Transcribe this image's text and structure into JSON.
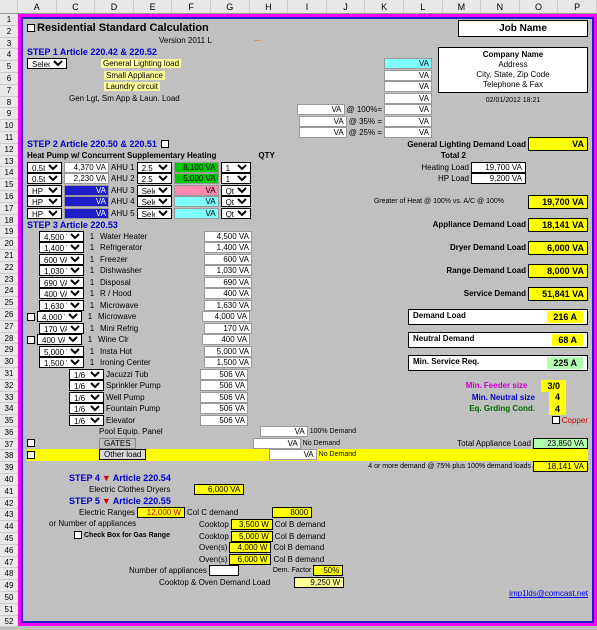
{
  "title": "Residential Standard Calculation",
  "version": "Version 2011 L",
  "jobname": "Job Name",
  "company": {
    "name": "Company Name",
    "addr": "Address",
    "csz": "City, State, Zip Code",
    "tel": "Telephone & Fax"
  },
  "timestamp": "02/01/2012 18:21",
  "step1": {
    "label": "STEP 1",
    "art": "Article 220.42 & 220.52"
  },
  "step1items": [
    "General Lighting load",
    "Small Appliance",
    "Laundry circuit",
    "Gen Lgt, Sm App & Laun. Load"
  ],
  "pcts": [
    "@ 100%=",
    "@ 35% =",
    "@ 25% ="
  ],
  "step2": {
    "label": "STEP 2",
    "art": "Article 220.50 & 220.51",
    "note": "Heat Pump w/ Concurrent Supplementary Heating"
  },
  "qtyh": "QTY",
  "ahuRows": [
    {
      "sel1": "0.5ton",
      "val": "4,370 VA",
      "ahu": "AHU 1",
      "kw": "2.5 kW",
      "green": true,
      "vva": "8,100 VA",
      "qty": "1"
    },
    {
      "sel1": "0.5ton",
      "val": "2,230 VA",
      "ahu": "AHU 2",
      "kw": "2.5 kW",
      "green": true,
      "vva": "5,000 VA",
      "qty": "1"
    },
    {
      "sel1": "HP kW",
      "val": "VA",
      "ahu": "AHU 3",
      "kw": "Select",
      "pink": true,
      "vva": "VA",
      "qty": "Qty",
      "bg": "navy"
    },
    {
      "sel1": "HP kW",
      "val": "VA",
      "ahu": "AHU 4",
      "kw": "Select",
      "cyan": true,
      "vva": "VA",
      "qty": "Qty",
      "bg": "navy"
    },
    {
      "sel1": "HP kW",
      "val": "VA",
      "ahu": "AHU 5",
      "kw": "Select",
      "cyan": true,
      "vva": "VA",
      "qty": "Qty",
      "bg": "navy"
    }
  ],
  "gldl": "General Lighting Demand Load",
  "total": "Total      2",
  "heatload": {
    "lbl": "Heating Load",
    "val": "19,700 VA"
  },
  "hpload": {
    "lbl": "HP Load",
    "val": "9,200 VA"
  },
  "greater": "Greater of Heat @ 100% vs. A/C @ 100%",
  "greaterVal": "19,700 VA",
  "step3": {
    "label": "STEP 3",
    "art": "Article 220.53"
  },
  "appliances": [
    {
      "sel": "4,500 VA",
      "q": "1",
      "name": "Water Heater",
      "va": "4,500 VA"
    },
    {
      "sel": "1,400 VA",
      "q": "1",
      "name": "Refrigerator",
      "va": "1,400 VA"
    },
    {
      "sel": "600 VA",
      "q": "1",
      "name": "Freezer",
      "va": "600 VA"
    },
    {
      "sel": "1,030 VA",
      "q": "1",
      "name": "Dishwasher",
      "va": "1,030 VA"
    },
    {
      "sel": "690 VA",
      "q": "1",
      "name": "Disposal",
      "va": "690 VA"
    },
    {
      "sel": "400 VA",
      "q": "1",
      "name": "R / Hood",
      "va": "400 VA"
    },
    {
      "sel": "1,630 VA",
      "q": "1",
      "name": "Microwave",
      "va": "1,630 VA"
    },
    {
      "sel": "4,000 VA",
      "q": "1",
      "name": "Microwave",
      "va": "4,000 VA"
    },
    {
      "sel": "170 VA",
      "q": "1",
      "name": "Mini Refrig",
      "va": "170 VA"
    },
    {
      "sel": "400 VA",
      "q": "1",
      "name": "Wine Clr",
      "va": "400 VA"
    },
    {
      "sel": "5,000 VA",
      "q": "1",
      "name": "Insta Hot",
      "va": "5,000 VA"
    },
    {
      "sel": "1,500 VA",
      "q": "1",
      "name": "Ironing Center",
      "va": "1,500 VA"
    }
  ],
  "hpItems": [
    {
      "sel": "1/6 hp",
      "name": "Jacuzzi Tub",
      "va": "506 VA"
    },
    {
      "sel": "1/6",
      "name": "Sprinkler Pump",
      "va": "506 VA"
    },
    {
      "sel": "1/6 hp",
      "name": "Well Pump",
      "va": "506 VA"
    },
    {
      "sel": "1/6",
      "name": "Fountain Pump",
      "va": "506 VA"
    },
    {
      "sel": "1/6 hp",
      "name": "Elevator",
      "va": "506 VA"
    }
  ],
  "pool": {
    "name": "Pool Equip. Panel",
    "va": "VA",
    "note": "100% Demand"
  },
  "gates": {
    "name": "GATES",
    "va": "VA",
    "note": "No Demand"
  },
  "other": {
    "name": "Other load",
    "va": "VA",
    "note": "No Demand"
  },
  "rightLoads": [
    {
      "lbl": "Appliance Demand Load",
      "val": "18,141 VA"
    },
    {
      "lbl": "Dryer Demand Load",
      "val": "6,000 VA"
    },
    {
      "lbl": "Range Demand Load",
      "val": "8,000 VA"
    },
    {
      "lbl": "Service Demand",
      "val": "51,841 VA"
    }
  ],
  "boxed": [
    {
      "lbl": "Demand Load",
      "val": "216 A"
    },
    {
      "lbl": "Neutral Demand",
      "val": "68 A"
    },
    {
      "lbl": "Min. Service Req.",
      "val": "225 A"
    }
  ],
  "sizes": [
    {
      "lbl": "Min. Feeder size",
      "val": "3/0",
      "cls": "magenta"
    },
    {
      "lbl": "Min. Neutral size",
      "val": "4",
      "cls": "blue"
    },
    {
      "lbl": "Eq. Grding Cond.",
      "val": "4",
      "cls": "dgreen"
    }
  ],
  "copper": "Copper",
  "tal": {
    "lbl": "Total Appliance Load",
    "val": "23,850 VA"
  },
  "fourmore": "4 or more demand @ 75% plus 100% demand loads",
  "fourmoreVal": "18,141 VA",
  "step4": {
    "label": "STEP  4",
    "art": "Article 220.54",
    "name": "Electric Clothes Dryers",
    "val": "6,000 VA"
  },
  "step5": {
    "label": "STEP  5",
    "art": "Article 220.55"
  },
  "eranges": {
    "lbl": "Electric Ranges",
    "kw": "12,000 W",
    "col": "Col C demand",
    "val": "8000"
  },
  "numapp": "or   Number of appliances",
  "gasrange": "Check Box for Gas Range",
  "cookRows": [
    {
      "n": "Cooktop",
      "w": "3,500 W",
      "c": "Col B demand"
    },
    {
      "n": "Cooktop",
      "w": "5,000 W",
      "c": "Col B demand"
    },
    {
      "n": "Oven(s)",
      "w": "4,000 W",
      "c": "Col B demand"
    },
    {
      "n": "Oven(s)",
      "w": "6,000 W",
      "c": "Col B demand"
    }
  ],
  "numapp2": {
    "lbl": "Number of appliances",
    "dem": "Dem. Factor",
    "pct": "50%"
  },
  "codl": {
    "lbl": "Cooktop & Oven Demand Load",
    "val": "9,250 W"
  },
  "email": "imp1lds@comcast.net",
  "cols": [
    "A",
    "C",
    "D",
    "E",
    "F",
    "G",
    "H",
    "I",
    "J",
    "K",
    "L",
    "M",
    "N",
    "O",
    "P"
  ]
}
